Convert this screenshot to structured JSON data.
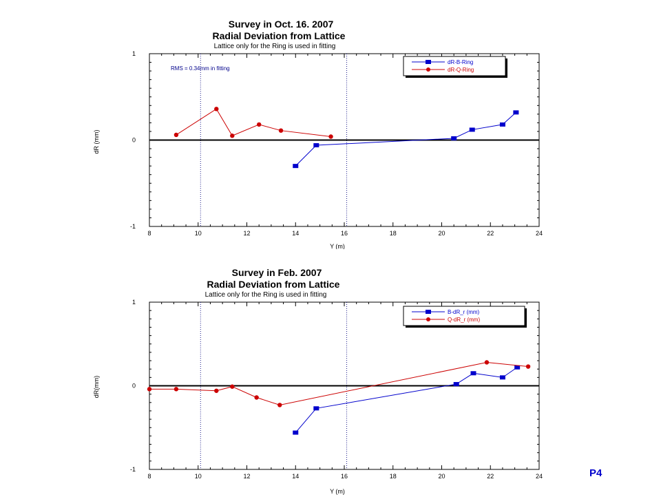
{
  "page_label": "P4",
  "colors": {
    "series_b": "#0000cc",
    "series_q": "#cc0000",
    "vline": "#1a1a8a",
    "annotation": "#00008b"
  },
  "chart_data": [
    {
      "type": "line",
      "title": "Survey in Oct. 16. 2007",
      "subtitle": "Radial Deviation from Lattice",
      "note": "Lattice only for the Ring is used in fitting",
      "annotation": "RMS = 0.34mm in fitting",
      "xlabel": "Y (m)",
      "ylabel": "dR (mm)",
      "xlim": [
        8,
        24
      ],
      "ylim": [
        -1,
        1
      ],
      "xticks": [
        8,
        10,
        12,
        14,
        16,
        18,
        20,
        22,
        24
      ],
      "yticks": [
        -1,
        0,
        1
      ],
      "vlines": [
        10.1,
        16.1
      ],
      "hline": 0,
      "grid": false,
      "legend_position": "top-right",
      "series": [
        {
          "name": "dR-B-Ring",
          "color": "#0000cc",
          "marker": "square",
          "x": [
            14.0,
            14.85,
            20.5,
            21.25,
            22.5,
            23.05
          ],
          "y": [
            -0.3,
            -0.06,
            0.02,
            0.12,
            0.18,
            0.32
          ]
        },
        {
          "name": "dR-Q-Ring",
          "color": "#cc0000",
          "marker": "circle",
          "x": [
            9.1,
            10.75,
            11.4,
            12.5,
            13.4,
            15.45
          ],
          "y": [
            0.06,
            0.36,
            0.05,
            0.18,
            0.11,
            0.04
          ]
        }
      ]
    },
    {
      "type": "line",
      "title": "Survey in Feb. 2007",
      "subtitle": "Radial Deviation from Lattice",
      "note": "Lattice only for the Ring is used in fitting",
      "xlabel": "Y (m)",
      "ylabel": "dR(mm)",
      "xlim": [
        8,
        24
      ],
      "ylim": [
        -1,
        1
      ],
      "xticks": [
        8,
        10,
        12,
        14,
        16,
        18,
        20,
        22,
        24
      ],
      "yticks": [
        -1,
        0,
        1
      ],
      "vlines": [
        10.1,
        16.1
      ],
      "hline": 0,
      "grid": false,
      "legend_position": "top-right",
      "series": [
        {
          "name": "B-dR_r (mm)",
          "color": "#0000cc",
          "marker": "square",
          "x": [
            14.0,
            14.85,
            20.6,
            21.3,
            22.5,
            23.1
          ],
          "y": [
            -0.56,
            -0.27,
            0.02,
            0.15,
            0.1,
            0.22
          ]
        },
        {
          "name": "Q-dR_r (mm)",
          "color": "#cc0000",
          "marker": "circle",
          "x": [
            8.0,
            9.1,
            10.75,
            11.4,
            12.4,
            13.35,
            21.85,
            23.55
          ],
          "y": [
            -0.04,
            -0.04,
            -0.06,
            -0.01,
            -0.14,
            -0.23,
            0.28,
            0.23
          ]
        }
      ]
    }
  ]
}
